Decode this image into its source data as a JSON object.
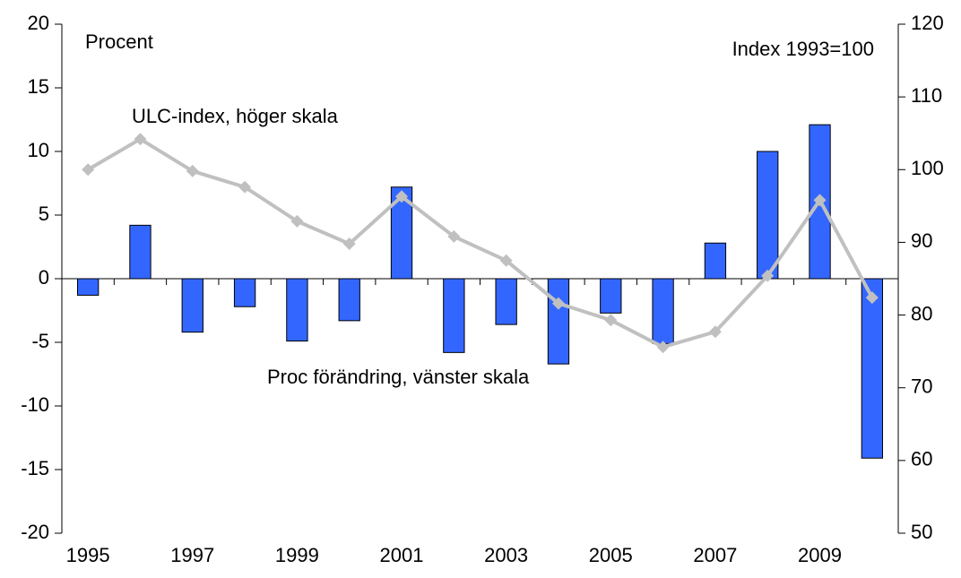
{
  "chart_data": {
    "type": "bar",
    "categories": [
      "1995",
      null,
      "1997",
      null,
      "1999",
      null,
      "2001",
      null,
      "2003",
      null,
      "2005",
      null,
      "2007",
      null,
      "2009",
      null
    ],
    "series": [
      {
        "name": "Proc förändring, vänster skala",
        "type": "bar",
        "color": "#3366ff",
        "axis": "y",
        "values": [
          -1.3,
          4.2,
          -4.2,
          -2.2,
          -4.9,
          -3.3,
          7.2,
          -5.8,
          -3.6,
          -6.7,
          -2.7,
          -5.1,
          2.8,
          10.0,
          12.1,
          -14.1
        ]
      },
      {
        "name": "ULC-index, höger skala",
        "type": "line",
        "color": "#c0c0c0",
        "axis": "y2",
        "values": [
          100,
          104.2,
          99.8,
          97.6,
          92.9,
          89.8,
          96.3,
          90.8,
          87.5,
          81.6,
          79.3,
          75.6,
          77.7,
          85.4,
          95.8,
          82.4
        ]
      }
    ],
    "ylabel": "Procent",
    "y2label": "Index 1993=100",
    "ylim": [
      -20,
      20
    ],
    "yticks": [
      -20,
      -15,
      -10,
      -5,
      0,
      5,
      10,
      15,
      20
    ],
    "y2lim": [
      50,
      120
    ],
    "y2ticks": [
      50,
      60,
      70,
      80,
      90,
      100,
      110,
      120
    ]
  }
}
